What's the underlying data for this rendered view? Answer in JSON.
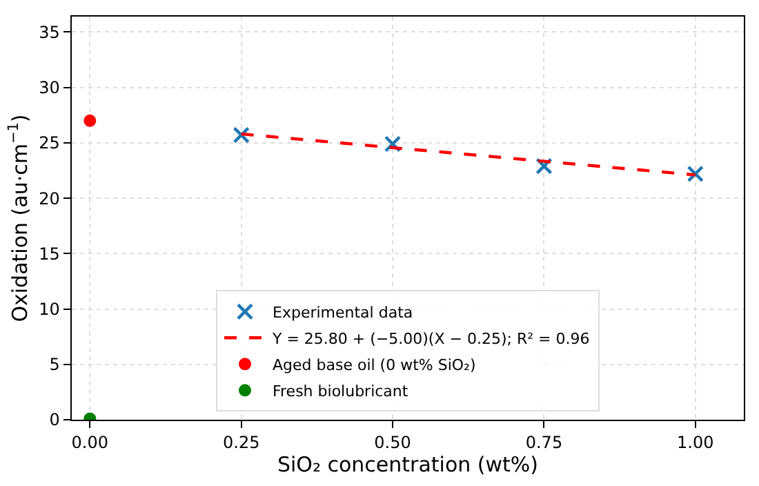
{
  "chart_data": {
    "type": "scatter",
    "xlabel": "SiO₂ concentration (wt%)",
    "ylabel": "Oxidation (au·cm$^{−1}$)",
    "xlim": [
      -0.03,
      1.08
    ],
    "xticks": [
      {
        "value": 0,
        "label": "0.00"
      },
      {
        "value": 0.25,
        "label": "0.25"
      },
      {
        "value": 0.5,
        "label": "0.50"
      },
      {
        "value": 0.75,
        "label": "0.75"
      },
      {
        "value": 1,
        "label": "1.00"
      }
    ],
    "ylim": [
      0,
      36.4
    ],
    "yticks": [
      0,
      5,
      10,
      15,
      20,
      25,
      30,
      35
    ],
    "grid": true,
    "legend": "bottom",
    "series": [
      {
        "name": "Experimental data",
        "marker": "cross",
        "color": "#1f77b4",
        "x": [
          0.25,
          0.5,
          0.75,
          1.0
        ],
        "values": [
          25.7,
          24.9,
          22.9,
          22.2
        ]
      },
      {
        "name": "Y = 25.80 + (−5.00)(X − 0.25); R² = 0.96",
        "type": "line",
        "line_style": "dashed",
        "color": "#ff0000",
        "x": [
          0.25,
          1.0
        ],
        "values": [
          25.8,
          22.1
        ]
      },
      {
        "name": "Aged base oil (0 wt% SiO₂)",
        "marker": "circle",
        "color": "#ff0000",
        "x": [
          0
        ],
        "values": [
          27.0
        ]
      },
      {
        "name": "Fresh biolubricant",
        "marker": "circle",
        "color": "#008000",
        "x": [
          0
        ],
        "values": [
          0.1
        ]
      }
    ]
  }
}
